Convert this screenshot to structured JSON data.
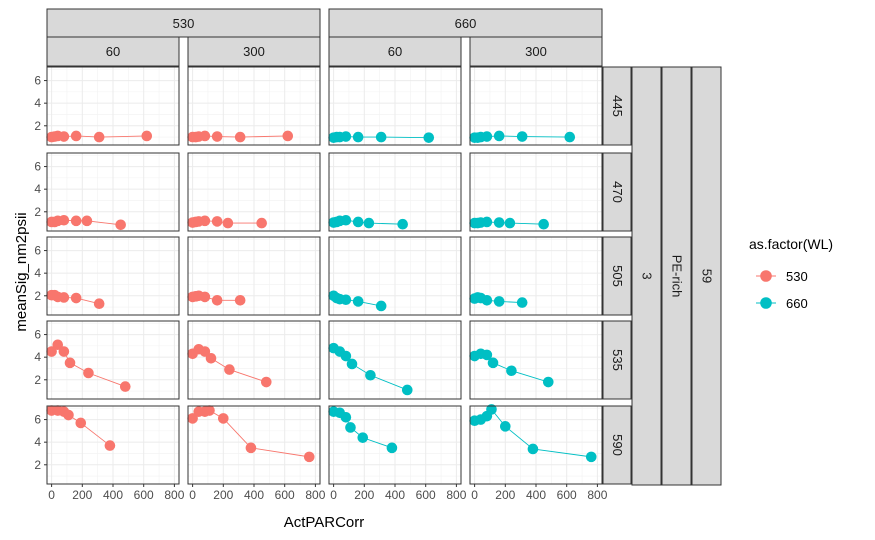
{
  "chart_data": {
    "type": "scatter",
    "xlabel": "ActPARCorr",
    "ylabel": "meanSig_nm2psii",
    "xlim": [
      -30,
      830
    ],
    "ylim": [
      0.3,
      7.2
    ],
    "x_ticks": [
      0,
      200,
      400,
      600,
      800
    ],
    "y_ticks": [
      2,
      4,
      6
    ],
    "grid": true,
    "facet_cols": [
      {
        "outer": "530",
        "inner": "60"
      },
      {
        "outer": "530",
        "inner": "300"
      },
      {
        "outer": "660",
        "inner": "60"
      },
      {
        "outer": "660",
        "inner": "300"
      }
    ],
    "col_outer_labels": [
      "530",
      "660"
    ],
    "row_labels": [
      "445",
      "470",
      "505",
      "535",
      "590"
    ],
    "right_strips": [
      "3",
      "PE-rich",
      "59"
    ],
    "legend": {
      "title": "as.factor(WL)",
      "entries": [
        {
          "label": "530",
          "color": "#F8766D"
        },
        {
          "label": "660",
          "color": "#00BFC4"
        }
      ],
      "position": "right"
    },
    "panels": [
      [
        {
          "series": "530",
          "x": [
            0,
            20,
            40,
            80,
            160,
            310,
            620
          ],
          "y": [
            1.0,
            1.05,
            1.1,
            1.05,
            1.1,
            1.0,
            1.1
          ]
        },
        {
          "series": "530",
          "x": [
            0,
            20,
            40,
            80,
            160,
            310,
            620
          ],
          "y": [
            1.0,
            1.0,
            1.05,
            1.1,
            1.05,
            1.0,
            1.1
          ]
        },
        {
          "series": "660",
          "x": [
            0,
            20,
            40,
            80,
            160,
            310,
            620
          ],
          "y": [
            0.95,
            1.0,
            1.0,
            1.05,
            1.0,
            1.0,
            0.95
          ]
        },
        {
          "series": "660",
          "x": [
            0,
            20,
            40,
            80,
            160,
            310,
            620
          ],
          "y": [
            0.95,
            0.95,
            1.0,
            1.05,
            1.1,
            1.05,
            1.0
          ]
        }
      ],
      [
        {
          "series": "530",
          "x": [
            0,
            20,
            40,
            80,
            160,
            230,
            450
          ],
          "y": [
            1.1,
            1.1,
            1.2,
            1.25,
            1.2,
            1.2,
            0.85
          ]
        },
        {
          "series": "530",
          "x": [
            0,
            20,
            40,
            80,
            160,
            230,
            450
          ],
          "y": [
            1.05,
            1.1,
            1.15,
            1.2,
            1.15,
            1.0,
            1.0
          ]
        },
        {
          "series": "660",
          "x": [
            0,
            20,
            40,
            80,
            160,
            230,
            450
          ],
          "y": [
            1.05,
            1.1,
            1.2,
            1.25,
            1.1,
            1.0,
            0.9
          ]
        },
        {
          "series": "660",
          "x": [
            0,
            20,
            40,
            80,
            160,
            230,
            450
          ],
          "y": [
            1.0,
            1.0,
            1.05,
            1.1,
            1.05,
            1.0,
            0.9
          ]
        }
      ],
      [
        {
          "series": "530",
          "x": [
            0,
            20,
            40,
            80,
            160,
            310
          ],
          "y": [
            2.05,
            2.05,
            1.9,
            1.85,
            1.8,
            1.3
          ]
        },
        {
          "series": "530",
          "x": [
            0,
            20,
            40,
            80,
            160,
            310
          ],
          "y": [
            1.9,
            1.95,
            2.0,
            1.9,
            1.6,
            1.6
          ]
        },
        {
          "series": "660",
          "x": [
            0,
            20,
            40,
            80,
            160,
            310
          ],
          "y": [
            2.0,
            1.8,
            1.7,
            1.65,
            1.5,
            1.1
          ]
        },
        {
          "series": "660",
          "x": [
            0,
            20,
            40,
            80,
            160,
            310
          ],
          "y": [
            1.75,
            1.85,
            1.8,
            1.6,
            1.5,
            1.4
          ]
        }
      ],
      [
        {
          "series": "530",
          "x": [
            0,
            40,
            80,
            120,
            240,
            480
          ],
          "y": [
            4.5,
            5.1,
            4.5,
            3.5,
            2.6,
            1.4
          ]
        },
        {
          "series": "530",
          "x": [
            0,
            40,
            80,
            120,
            240,
            480
          ],
          "y": [
            4.3,
            4.7,
            4.5,
            3.9,
            2.9,
            1.8
          ]
        },
        {
          "series": "660",
          "x": [
            0,
            40,
            80,
            120,
            240,
            480
          ],
          "y": [
            4.8,
            4.5,
            4.1,
            3.4,
            2.4,
            1.1
          ]
        },
        {
          "series": "660",
          "x": [
            0,
            40,
            80,
            120,
            240,
            480
          ],
          "y": [
            4.1,
            4.3,
            4.2,
            3.5,
            2.8,
            1.8
          ]
        }
      ],
      [
        {
          "series": "530",
          "x": [
            0,
            40,
            80,
            110,
            190,
            380
          ],
          "y": [
            6.8,
            6.8,
            6.7,
            6.4,
            5.7,
            3.7
          ]
        },
        {
          "series": "530",
          "x": [
            0,
            40,
            80,
            110,
            200,
            380,
            760
          ],
          "y": [
            6.1,
            6.7,
            6.7,
            6.8,
            6.1,
            3.5,
            2.7
          ]
        },
        {
          "series": "660",
          "x": [
            0,
            40,
            80,
            110,
            190,
            380
          ],
          "y": [
            6.7,
            6.6,
            6.2,
            5.3,
            4.4,
            3.5
          ]
        },
        {
          "series": "660",
          "x": [
            0,
            40,
            80,
            110,
            200,
            380,
            760
          ],
          "y": [
            5.9,
            6.0,
            6.3,
            6.9,
            5.4,
            3.4,
            2.7
          ]
        }
      ]
    ]
  }
}
